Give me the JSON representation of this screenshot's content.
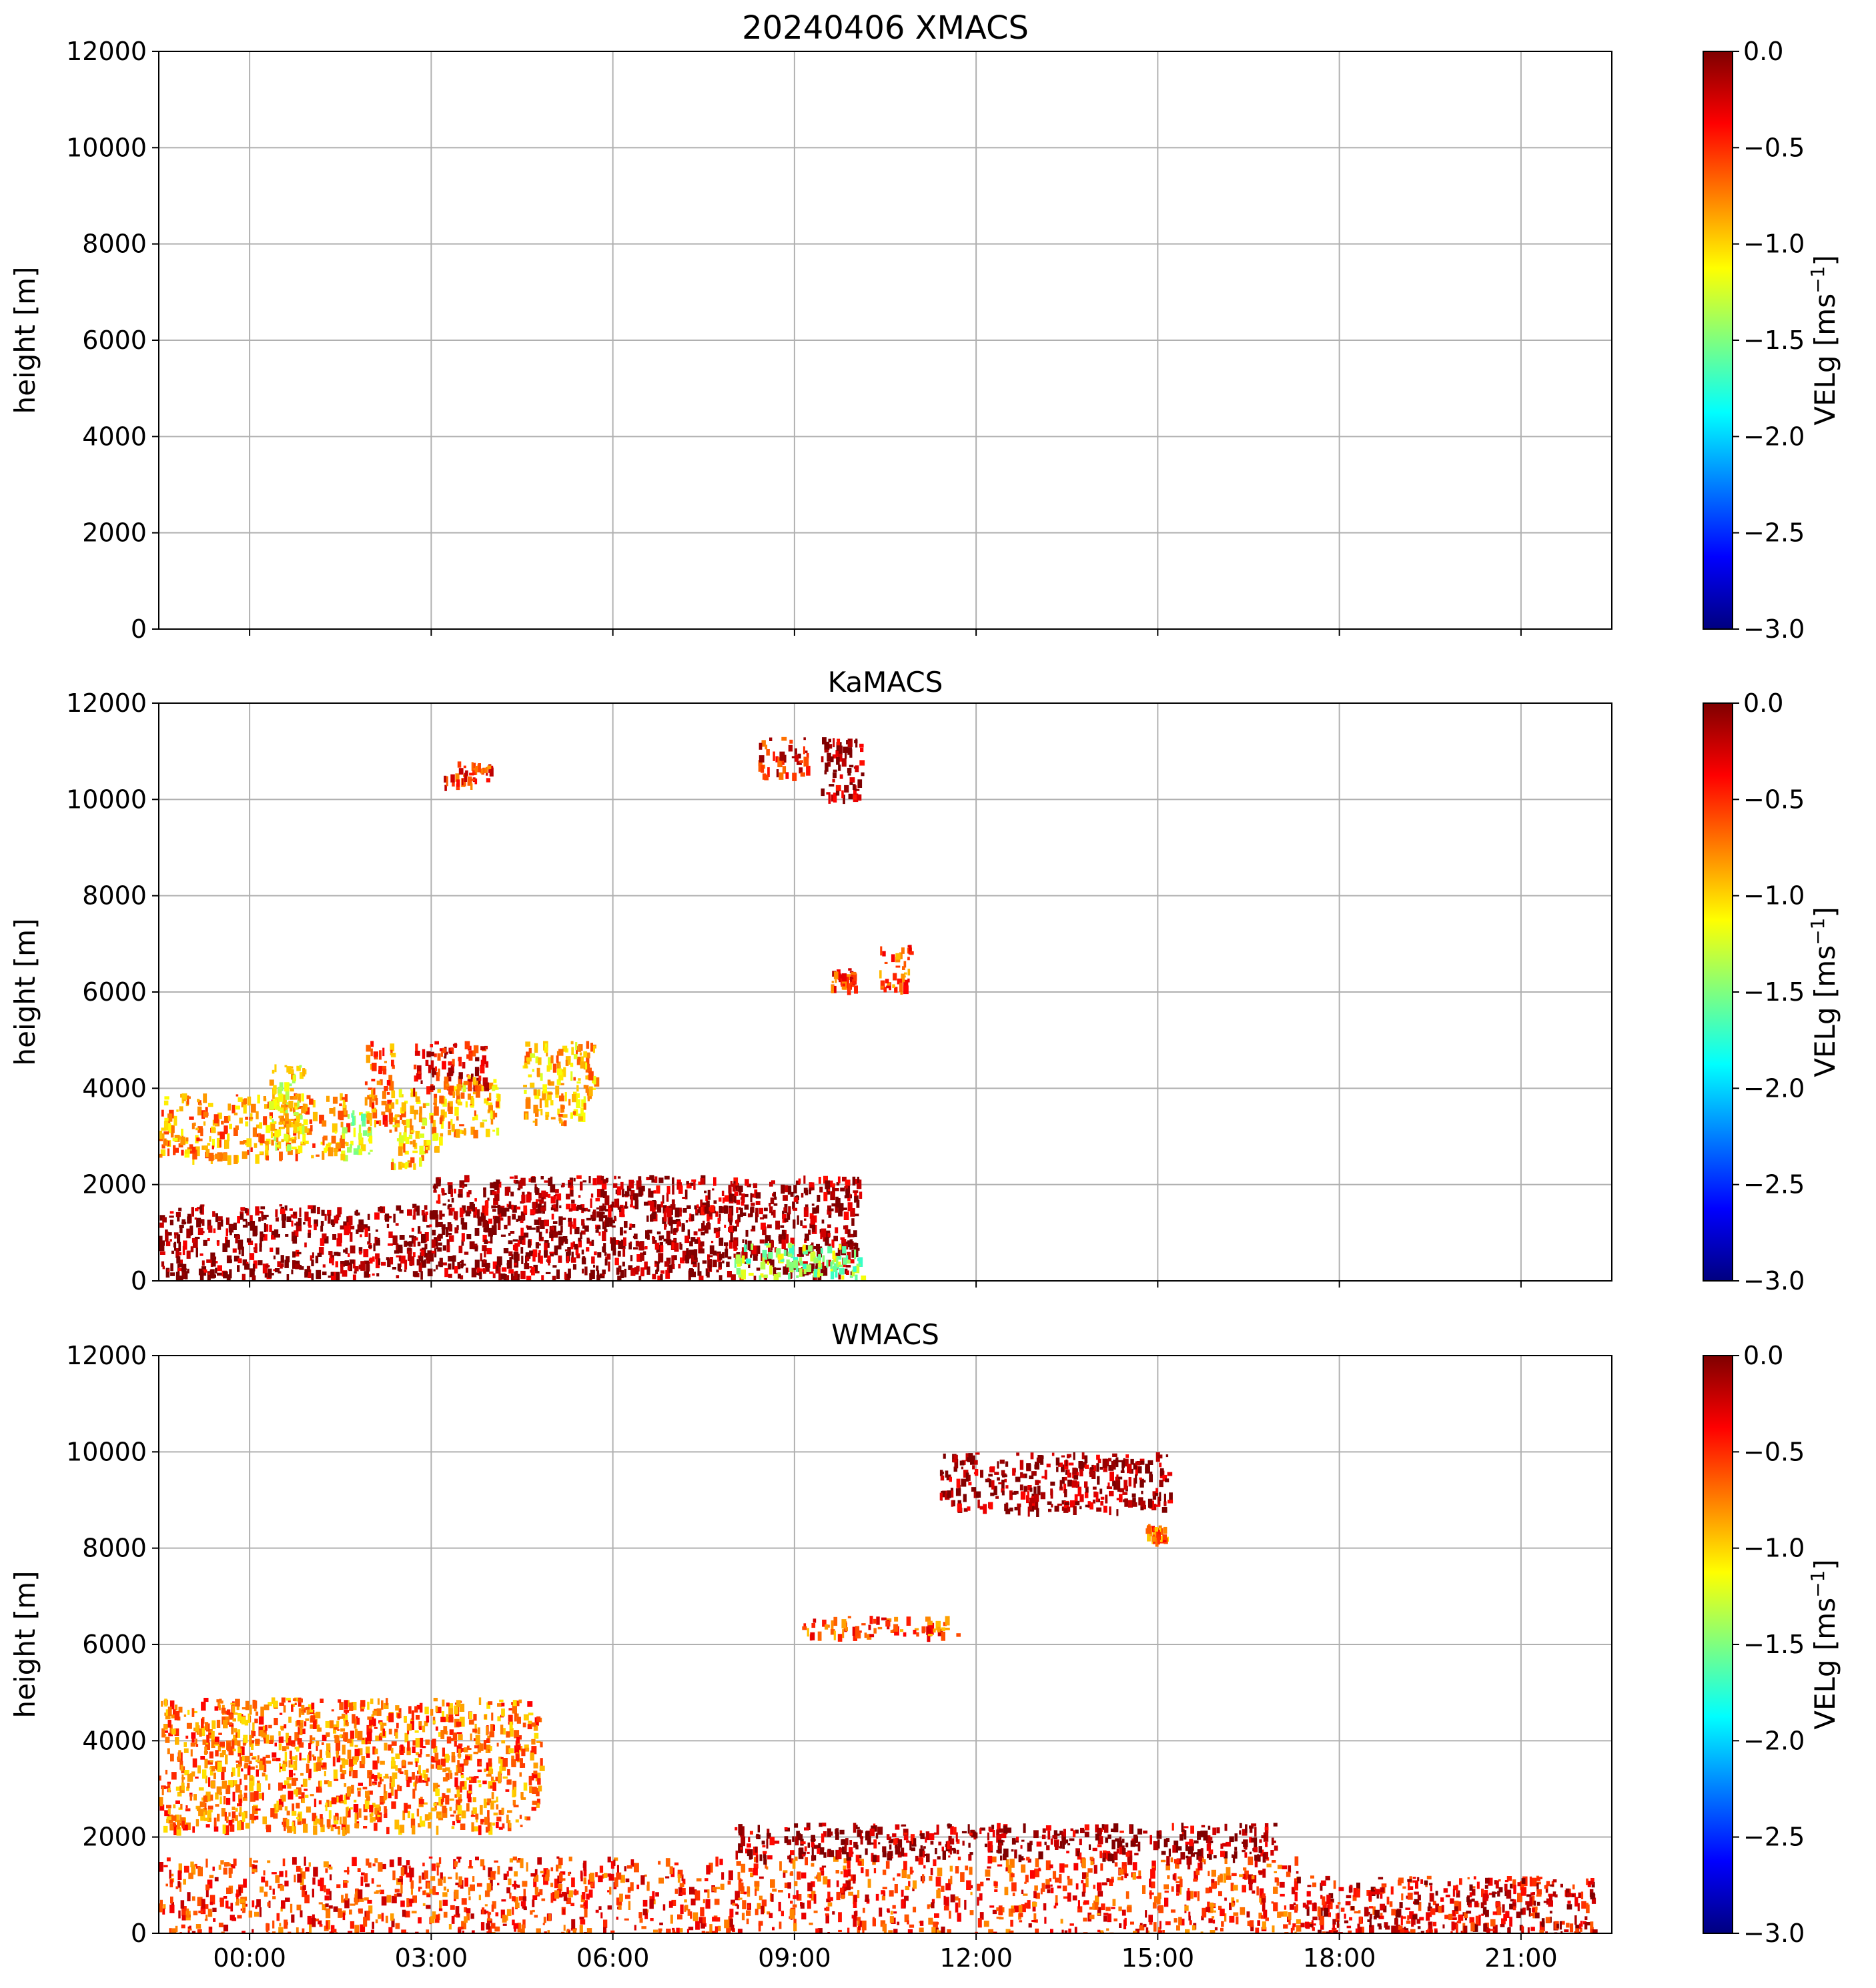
{
  "figure": {
    "title": "20240406 XMACS"
  },
  "colors": {
    "grid": "#b0b0b0",
    "axis": "#000000",
    "colormap": [
      "#00007f",
      "#0000ff",
      "#007fff",
      "#00ffff",
      "#7fff7f",
      "#ffff00",
      "#ff7f00",
      "#ff0000",
      "#7f0000"
    ]
  },
  "chart_data": [
    {
      "type": "heatmap",
      "title": "",
      "ylabel": "height [m]",
      "ylim": [
        0,
        12000
      ],
      "yticks": [
        "0",
        "2000",
        "4000",
        "6000",
        "8000",
        "10000",
        "12000"
      ],
      "xlim_hours": [
        -1.5,
        22.5
      ],
      "xticks_hours": [
        0,
        3,
        6,
        9,
        12,
        15,
        18,
        21
      ],
      "xticklabels": [],
      "grid": true,
      "colorbar": {
        "label_main": "VELg [ms",
        "label_sup": "−1",
        "label_close": "]",
        "range": [
          -3.0,
          0.0
        ],
        "ticks": [
          "0.0",
          "−0.5",
          "−1.0",
          "−1.5",
          "−2.0",
          "−2.5",
          "−3.0"
        ]
      },
      "echoes": []
    },
    {
      "type": "heatmap",
      "title": "KaMACS",
      "ylabel": "height [m]",
      "ylim": [
        0,
        12000
      ],
      "yticks": [
        "0",
        "2000",
        "4000",
        "6000",
        "8000",
        "10000",
        "12000"
      ],
      "xlim_hours": [
        -1.5,
        22.5
      ],
      "xticks_hours": [
        0,
        3,
        6,
        9,
        12,
        15,
        18,
        21
      ],
      "xticklabels": [],
      "grid": true,
      "colorbar": {
        "label_main": "VELg [ms",
        "label_sup": "−1",
        "label_close": "]",
        "range": [
          -3.0,
          0.0
        ],
        "ticks": [
          "0.0",
          "−0.5",
          "−1.0",
          "−1.5",
          "−2.0",
          "−2.5",
          "−3.0"
        ]
      },
      "echoes": [
        {
          "t0": -1.5,
          "t1": 10.0,
          "h0": 100,
          "h1": 1600,
          "vel": -0.05
        },
        {
          "t0": 3.0,
          "t1": 10.1,
          "h0": 1500,
          "h1": 2200,
          "vel": -0.08
        },
        {
          "t0": 8.0,
          "t1": 10.1,
          "h0": 100,
          "h1": 800,
          "vel": -1.4
        },
        {
          "t0": -1.5,
          "t1": 1.6,
          "h0": 2600,
          "h1": 3900,
          "vel": -0.8
        },
        {
          "t0": 0.3,
          "t1": 0.9,
          "h0": 2800,
          "h1": 4500,
          "vel": -1.1
        },
        {
          "t0": 1.5,
          "t1": 2.0,
          "h0": 2600,
          "h1": 3600,
          "vel": -1.3
        },
        {
          "t0": 1.9,
          "t1": 2.4,
          "h0": 3200,
          "h1": 5000,
          "vel": -0.7
        },
        {
          "t0": 2.3,
          "t1": 3.2,
          "h0": 2400,
          "h1": 4000,
          "vel": -0.9
        },
        {
          "t0": 2.7,
          "t1": 3.9,
          "h0": 4000,
          "h1": 5000,
          "vel": -0.3
        },
        {
          "t0": 3.2,
          "t1": 4.1,
          "h0": 3100,
          "h1": 4300,
          "vel": -0.9
        },
        {
          "t0": 4.5,
          "t1": 5.7,
          "h0": 3300,
          "h1": 5000,
          "vel": -0.9
        },
        {
          "t0": 3.2,
          "t1": 4.0,
          "h0": 10300,
          "h1": 10800,
          "vel": -0.5
        },
        {
          "t0": 8.4,
          "t1": 9.2,
          "h0": 10500,
          "h1": 11300,
          "vel": -0.4
        },
        {
          "t0": 9.4,
          "t1": 10.1,
          "h0": 10000,
          "h1": 11300,
          "vel": -0.1
        },
        {
          "t0": 9.6,
          "t1": 10.0,
          "h0": 6100,
          "h1": 6500,
          "vel": -0.5
        },
        {
          "t0": 10.4,
          "t1": 10.9,
          "h0": 6100,
          "h1": 7000,
          "vel": -0.6
        }
      ]
    },
    {
      "type": "heatmap",
      "title": "WMACS",
      "ylabel": "height [m]",
      "ylim": [
        0,
        12000
      ],
      "yticks": [
        "0",
        "2000",
        "4000",
        "6000",
        "8000",
        "10000",
        "12000"
      ],
      "xlim_hours": [
        -1.5,
        22.5
      ],
      "xticks_hours": [
        0,
        3,
        6,
        9,
        12,
        15,
        18,
        21
      ],
      "xticklabels": [
        "00:00",
        "03:00",
        "06:00",
        "09:00",
        "12:00",
        "15:00",
        "18:00",
        "21:00"
      ],
      "grid": true,
      "colorbar": {
        "label_main": "VELg [ms",
        "label_sup": "−1",
        "label_close": "]",
        "range": [
          -3.0,
          0.0
        ],
        "ticks": [
          "0.0",
          "−0.5",
          "−1.0",
          "−1.5",
          "−2.0",
          "−2.5",
          "−3.0"
        ]
      },
      "echoes": [
        {
          "t0": -1.5,
          "t1": 17.3,
          "h0": 0,
          "h1": 1600,
          "vel": -0.5
        },
        {
          "t0": 8.0,
          "t1": 17.0,
          "h0": 1600,
          "h1": 2300,
          "vel": -0.1
        },
        {
          "t0": 17.3,
          "t1": 22.2,
          "h0": 0,
          "h1": 1200,
          "vel": -0.3
        },
        {
          "t0": -1.5,
          "t1": 4.8,
          "h0": 2200,
          "h1": 4900,
          "vel": -0.7
        },
        {
          "t0": 11.4,
          "t1": 15.2,
          "h0": 8800,
          "h1": 10000,
          "vel": -0.05
        },
        {
          "t0": 14.8,
          "t1": 15.1,
          "h0": 8200,
          "h1": 8500,
          "vel": -0.7
        },
        {
          "t0": 9.1,
          "t1": 11.7,
          "h0": 6200,
          "h1": 6600,
          "vel": -0.6
        }
      ]
    }
  ]
}
